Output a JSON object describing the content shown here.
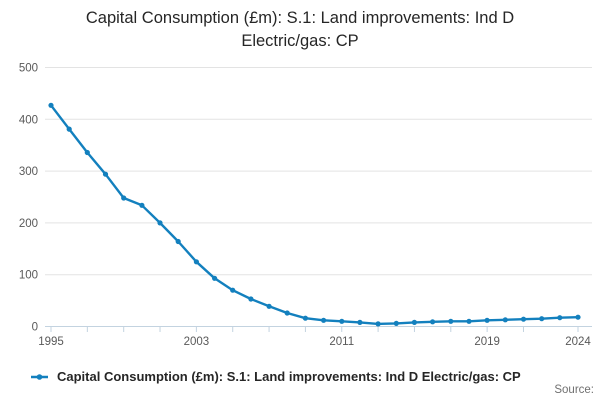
{
  "title_lines": [
    "Capital Consumption (£m): S.1: Land improvements: Ind D",
    "Electric/gas: CP"
  ],
  "source_label": "Source:",
  "colors": {
    "line": "#1380be",
    "grid": "#e3e3e3",
    "axis": "#c3d3e0",
    "tick_text": "#595959",
    "title_text": "#262626",
    "source_text": "#707070"
  },
  "chart_data": {
    "type": "line",
    "title": "Capital Consumption (£m): S.1: Land improvements: Ind D Electric/gas: CP",
    "legend": "Capital Consumption (£m): S.1: Land improvements: Ind D Electric/gas: CP",
    "xlabel": "",
    "ylabel": "",
    "x": [
      1995,
      1996,
      1997,
      1998,
      1999,
      2000,
      2001,
      2002,
      2003,
      2004,
      2005,
      2006,
      2007,
      2008,
      2009,
      2010,
      2011,
      2012,
      2013,
      2014,
      2015,
      2016,
      2017,
      2018,
      2019,
      2020,
      2021,
      2022,
      2023,
      2024
    ],
    "values": [
      427,
      381,
      336,
      294,
      248,
      234,
      200,
      164,
      125,
      93,
      70,
      53,
      39,
      26,
      16,
      12,
      10,
      8,
      5,
      6,
      8,
      9,
      10,
      10,
      12,
      13,
      14,
      15,
      17,
      18
    ],
    "ylim": [
      0,
      500
    ],
    "yticks": [
      0,
      100,
      200,
      300,
      400,
      500
    ],
    "xticks_minor": [
      1995,
      1997,
      1999,
      2001,
      2003,
      2005,
      2007,
      2009,
      2011,
      2013,
      2015,
      2017,
      2019,
      2021,
      2024
    ],
    "xticks_labeled": [
      1995,
      2003,
      2011,
      2019,
      2024
    ],
    "grid": "horizontal",
    "legend_position": "bottom",
    "marker": "circle",
    "line_color": "#1380be"
  }
}
